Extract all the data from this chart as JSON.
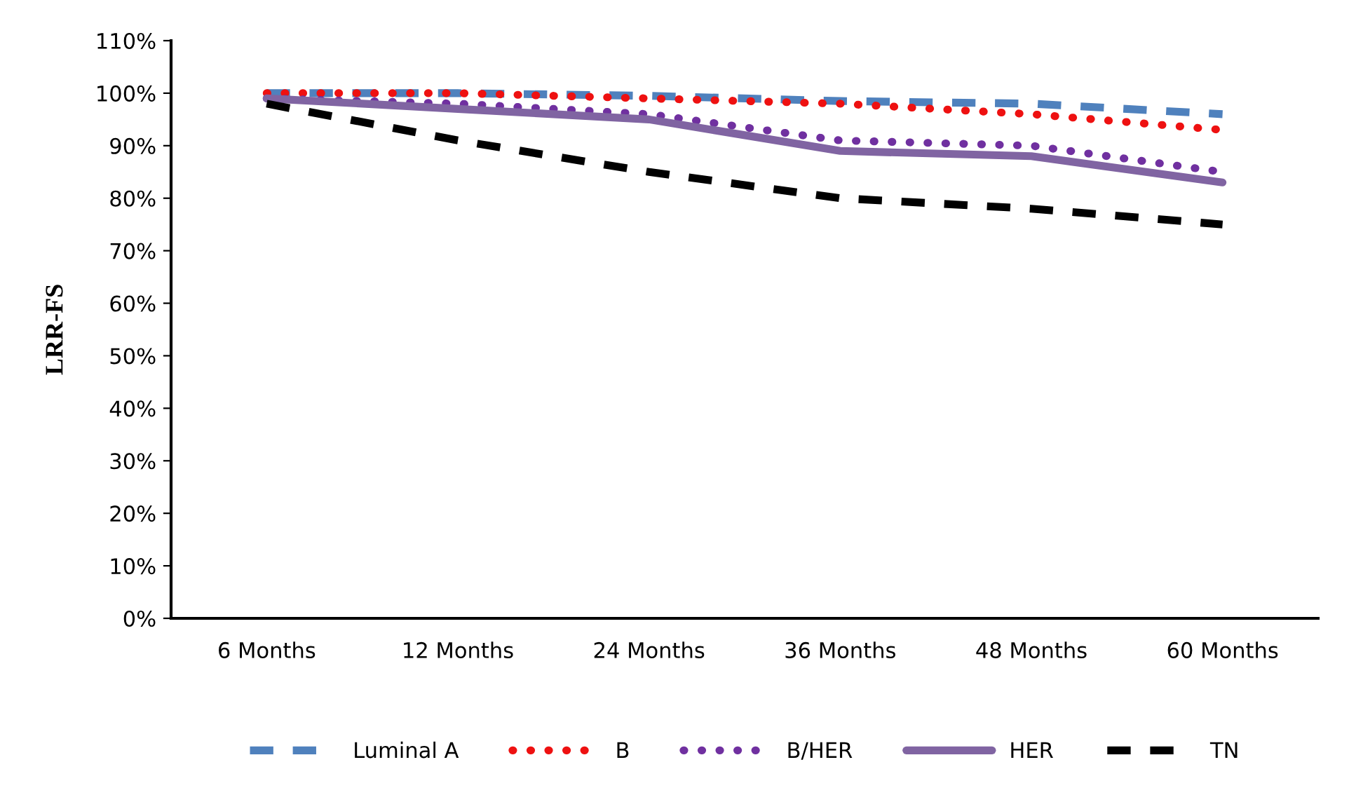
{
  "chart_data": {
    "type": "line",
    "ylabel": "LRR-FS",
    "categories": [
      "6 Months",
      "12 Months",
      "24 Months",
      "36 Months",
      "48 Months",
      "60 Months"
    ],
    "series": [
      {
        "name": "Luminal A",
        "color": "#4f81bd",
        "line_style": "dashed",
        "values": [
          100,
          100,
          99.5,
          98.5,
          98,
          96
        ]
      },
      {
        "name": "B",
        "color": "#ee1111",
        "line_style": "dotted",
        "values": [
          100,
          100,
          99,
          98,
          96,
          93
        ]
      },
      {
        "name": "B/HER",
        "color": "#7030a0",
        "line_style": "dotted",
        "values": [
          99,
          98,
          96,
          91,
          90,
          85
        ]
      },
      {
        "name": "HER",
        "color": "#8064a2",
        "line_style": "solid",
        "values": [
          99,
          97,
          95,
          89,
          88,
          83
        ]
      },
      {
        "name": "TN",
        "color": "#000000",
        "line_style": "dashed",
        "values": [
          98,
          91,
          85,
          80,
          78,
          75
        ]
      }
    ],
    "ylim": [
      0,
      110
    ],
    "yticks": [
      {
        "value": 0,
        "label": "0%"
      },
      {
        "value": 10,
        "label": "10%"
      },
      {
        "value": 20,
        "label": "20%"
      },
      {
        "value": 30,
        "label": "30%"
      },
      {
        "value": 40,
        "label": "40%"
      },
      {
        "value": 50,
        "label": "50%"
      },
      {
        "value": 60,
        "label": "60%"
      },
      {
        "value": 70,
        "label": "70%"
      },
      {
        "value": 80,
        "label": "80%"
      },
      {
        "value": 90,
        "label": "90%"
      },
      {
        "value": 100,
        "label": "100%"
      },
      {
        "value": 110,
        "label": "110%"
      }
    ],
    "grid": false,
    "legend": "bottom",
    "marker": "none"
  }
}
